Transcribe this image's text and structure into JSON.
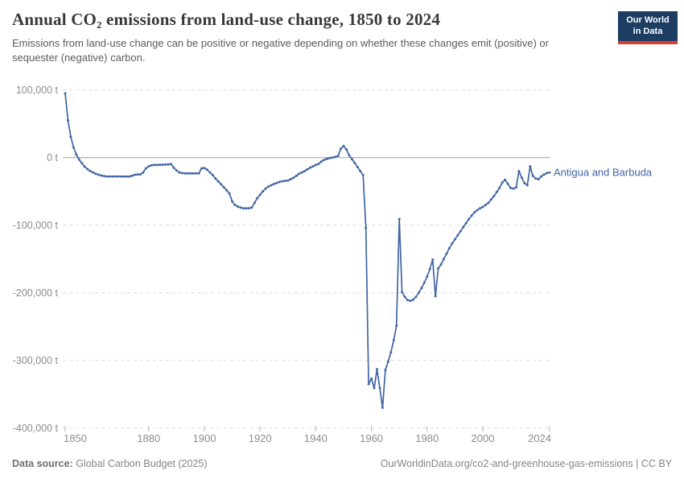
{
  "header": {
    "title": "Annual CO₂ emissions from land-use change, 1850 to 2024",
    "subtitle": "Emissions from land-use change can be positive or negative depending on whether these changes emit (positive) or sequester (negative) carbon.",
    "logo": {
      "line1": "Our World",
      "line2": "in Data",
      "bg_color": "#1d3d63",
      "accent_color": "#dc3e2f"
    }
  },
  "footer": {
    "source_label": "Data source:",
    "source_value": " Global Carbon Budget (2025)",
    "attribution": "OurWorldinData.org/co2-and-greenhouse-gas-emissions | CC BY"
  },
  "chart_data": {
    "type": "line",
    "title": "Annual CO₂ emissions from land-use change, 1850 to 2024",
    "unit": "t",
    "xlabel": "",
    "ylabel": "",
    "xlim": [
      1850,
      2024
    ],
    "ylim": [
      -400000,
      100000
    ],
    "grid": "horizontal-dashed",
    "legend_position": "end-of-line-label",
    "x_ticks": [
      1850,
      1880,
      1900,
      1920,
      1940,
      1960,
      1980,
      2000,
      2024
    ],
    "y_ticks": [
      {
        "value": 100000,
        "label": "100,000 t"
      },
      {
        "value": 0,
        "label": "0 t"
      },
      {
        "value": -100000,
        "label": "-100,000 t"
      },
      {
        "value": -200000,
        "label": "-200,000 t"
      },
      {
        "value": -300000,
        "label": "-300,000 t"
      },
      {
        "value": -400000,
        "label": "-400,000 t"
      }
    ],
    "series": [
      {
        "name": "Antigua and Barbuda",
        "color": "#4165a3",
        "x_start": 1850,
        "x_step": 1,
        "values": [
          95000,
          55000,
          31000,
          15000,
          4500,
          -3000,
          -8500,
          -13500,
          -17000,
          -20000,
          -22000,
          -24000,
          -25500,
          -26500,
          -27500,
          -28000,
          -28000,
          -28000,
          -28000,
          -28000,
          -28000,
          -28000,
          -28000,
          -28000,
          -27000,
          -25500,
          -25000,
          -25000,
          -22000,
          -16000,
          -13000,
          -11500,
          -11000,
          -11000,
          -10800,
          -10600,
          -10400,
          -10200,
          -9500,
          -15000,
          -19000,
          -22000,
          -23000,
          -23500,
          -23500,
          -23500,
          -23500,
          -23500,
          -23500,
          -16000,
          -15500,
          -18000,
          -22000,
          -26000,
          -31000,
          -35500,
          -39500,
          -44000,
          -48500,
          -53000,
          -65000,
          -70000,
          -72500,
          -74000,
          -75000,
          -75000,
          -75000,
          -74000,
          -67000,
          -60000,
          -55000,
          -50000,
          -46000,
          -43000,
          -41000,
          -39000,
          -37500,
          -36000,
          -35000,
          -34500,
          -34000,
          -32000,
          -30000,
          -27000,
          -24000,
          -22000,
          -20000,
          -17500,
          -15000,
          -13000,
          -11000,
          -9500,
          -6000,
          -3500,
          -2000,
          -1000,
          0,
          1000,
          2500,
          13000,
          17000,
          12000,
          3500,
          -2500,
          -8000,
          -14000,
          -20000,
          -26000,
          -104000,
          -335000,
          -327000,
          -341000,
          -313000,
          -341000,
          -370000,
          -314000,
          -302000,
          -288000,
          -270000,
          -249000,
          -91000,
          -199000,
          -206000,
          -211000,
          -212000,
          -210000,
          -206000,
          -200000,
          -193000,
          -185000,
          -176000,
          -165000,
          -151000,
          -205000,
          -164000,
          -158000,
          -150000,
          -142000,
          -134000,
          -127000,
          -121000,
          -115000,
          -109000,
          -103000,
          -97000,
          -91000,
          -86000,
          -81000,
          -78000,
          -75000,
          -73000,
          -70000,
          -67000,
          -62000,
          -57000,
          -51000,
          -45000,
          -37000,
          -33000,
          -39000,
          -45000,
          -46000,
          -44000,
          -20000,
          -30000,
          -38000,
          -41000,
          -13000,
          -27000,
          -31000,
          -32000,
          -28000,
          -25000,
          -23000,
          -22000
        ]
      }
    ],
    "colors": {
      "gridline": "#dedede",
      "zero_line": "#a0a0a0",
      "axis_text": "#8c8c8c",
      "tick_mark": "#b8b8b8"
    }
  }
}
